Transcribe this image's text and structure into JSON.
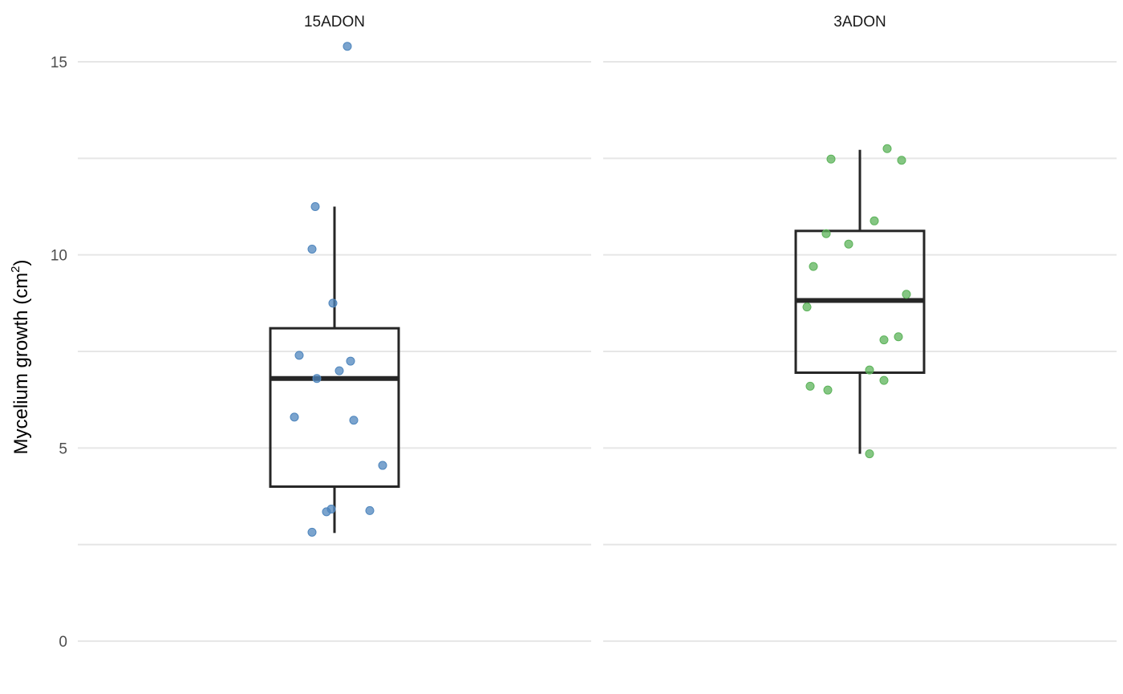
{
  "chart_data": {
    "type": "box",
    "ylabel": "Mycelium growth  (cm",
    "ylabel_sup": "2",
    "ylabel_close": ")",
    "ylim": [
      -0.6,
      16.1
    ],
    "yticks": [
      0,
      5,
      10,
      15
    ],
    "ytick_labels": [
      "0",
      "5",
      "10",
      "15"
    ],
    "minor_gridlines": [
      2.5,
      7.5,
      12.5
    ],
    "grid": true,
    "legend": "none",
    "panels": [
      {
        "name": "15ADON",
        "color": "#4f86bd",
        "box": {
          "whisker_low": 2.8,
          "q1": 4.0,
          "median": 6.8,
          "q3": 8.1,
          "whisker_high": 11.25
        },
        "points": [
          {
            "jitter": 0.08,
            "y": 15.4
          },
          {
            "jitter": -0.12,
            "y": 11.25
          },
          {
            "jitter": -0.14,
            "y": 10.15
          },
          {
            "jitter": -0.01,
            "y": 8.75
          },
          {
            "jitter": -0.22,
            "y": 7.4
          },
          {
            "jitter": 0.1,
            "y": 7.25
          },
          {
            "jitter": 0.03,
            "y": 7.0
          },
          {
            "jitter": -0.11,
            "y": 6.8
          },
          {
            "jitter": -0.25,
            "y": 5.8
          },
          {
            "jitter": 0.12,
            "y": 5.72
          },
          {
            "jitter": 0.3,
            "y": 4.55
          },
          {
            "jitter": -0.02,
            "y": 3.42
          },
          {
            "jitter": -0.05,
            "y": 3.35
          },
          {
            "jitter": 0.22,
            "y": 3.38
          },
          {
            "jitter": -0.14,
            "y": 2.82
          }
        ]
      },
      {
        "name": "3ADON",
        "color": "#5cb35a",
        "box": {
          "whisker_low": 4.85,
          "q1": 6.95,
          "median": 8.82,
          "q3": 10.62,
          "whisker_high": 12.72
        },
        "points": [
          {
            "jitter": 0.17,
            "y": 12.75
          },
          {
            "jitter": -0.18,
            "y": 12.48
          },
          {
            "jitter": 0.26,
            "y": 12.45
          },
          {
            "jitter": 0.09,
            "y": 10.88
          },
          {
            "jitter": -0.21,
            "y": 10.55
          },
          {
            "jitter": -0.07,
            "y": 10.28
          },
          {
            "jitter": -0.29,
            "y": 9.7
          },
          {
            "jitter": 0.29,
            "y": 8.98
          },
          {
            "jitter": -0.33,
            "y": 8.65
          },
          {
            "jitter": 0.24,
            "y": 7.88
          },
          {
            "jitter": 0.15,
            "y": 7.8
          },
          {
            "jitter": 0.06,
            "y": 7.02
          },
          {
            "jitter": 0.15,
            "y": 6.75
          },
          {
            "jitter": -0.31,
            "y": 6.6
          },
          {
            "jitter": -0.2,
            "y": 6.5
          },
          {
            "jitter": 0.06,
            "y": 4.85
          }
        ]
      }
    ]
  }
}
